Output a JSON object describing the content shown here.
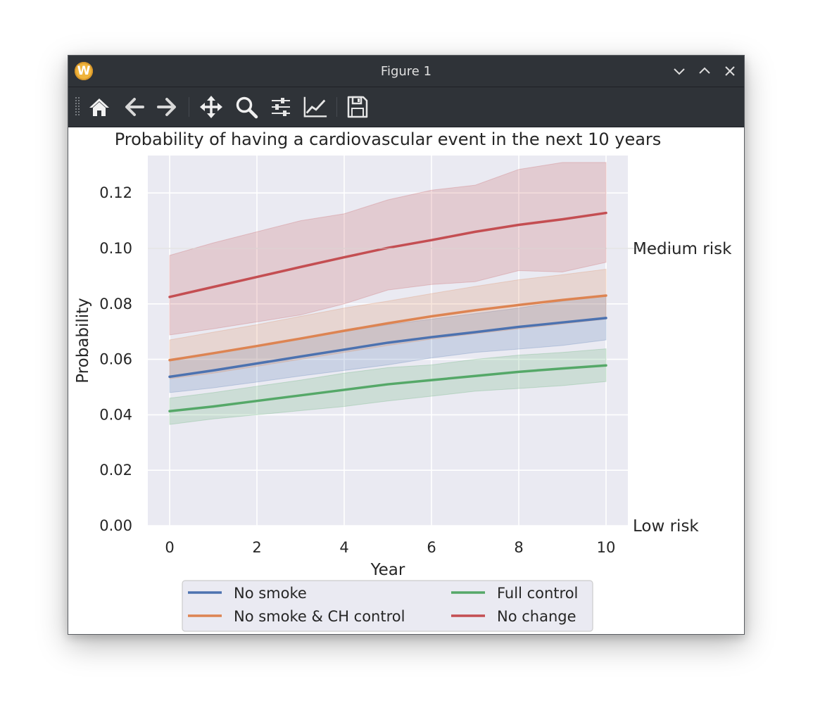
{
  "window": {
    "title": "Figure 1",
    "app_icon_letter": "W"
  },
  "toolbar": {
    "buttons": [
      {
        "name": "home-icon",
        "tooltip": "Reset original view"
      },
      {
        "name": "back-arrow-icon",
        "tooltip": "Back to previous view"
      },
      {
        "name": "forward-arrow-icon",
        "tooltip": "Forward to next view"
      },
      {
        "name": "pan-icon",
        "tooltip": "Pan axes"
      },
      {
        "name": "zoom-icon",
        "tooltip": "Zoom to rectangle"
      },
      {
        "name": "configure-subplots-icon",
        "tooltip": "Configure subplots"
      },
      {
        "name": "edit-axis-icon",
        "tooltip": "Edit axis, curve and image parameters"
      },
      {
        "name": "save-icon",
        "tooltip": "Save the figure"
      }
    ]
  },
  "colors": {
    "axes_bg": "#eaeaf2",
    "grid": "#ffffff",
    "No smoke": "#4c72b0",
    "No smoke & CH control": "#dd8452",
    "Full control": "#55a868",
    "No change": "#c44e52"
  },
  "chart_data": {
    "type": "line",
    "title": "Probability of having a cardiovascular event in the next 10 years",
    "xlabel": "Year",
    "ylabel": "Probability",
    "xlim": [
      -0.5,
      10.5
    ],
    "ylim": [
      0,
      0.1335
    ],
    "xticks": [
      "0",
      "2",
      "4",
      "6",
      "8",
      "10"
    ],
    "yticks": [
      "0.00",
      "0.02",
      "0.04",
      "0.06",
      "0.08",
      "0.10",
      "0.12"
    ],
    "grid": true,
    "legend": {
      "position": "bottom-center, below axes",
      "columns": 2
    },
    "x": [
      0,
      1,
      2,
      3,
      4,
      5,
      6,
      7,
      8,
      9,
      10
    ],
    "series": [
      {
        "name": "No smoke",
        "values": [
          0.0537,
          0.056,
          0.0585,
          0.061,
          0.0635,
          0.066,
          0.068,
          0.0698,
          0.0717,
          0.0733,
          0.0749
        ],
        "lower": [
          0.048,
          0.0497,
          0.0518,
          0.054,
          0.056,
          0.058,
          0.0605,
          0.0625,
          0.0637,
          0.065,
          0.067
        ],
        "upper": [
          0.06,
          0.0625,
          0.065,
          0.0675,
          0.07,
          0.0725,
          0.0745,
          0.0765,
          0.0785,
          0.081,
          0.083
        ]
      },
      {
        "name": "No smoke & CH control",
        "values": [
          0.0597,
          0.0622,
          0.0648,
          0.0675,
          0.0703,
          0.073,
          0.0755,
          0.0777,
          0.0796,
          0.0814,
          0.083
        ],
        "lower": [
          0.053,
          0.055,
          0.0575,
          0.06,
          0.0625,
          0.065,
          0.0673,
          0.0692,
          0.071,
          0.0727,
          0.0745
        ],
        "upper": [
          0.067,
          0.0698,
          0.0725,
          0.0755,
          0.0785,
          0.081,
          0.0837,
          0.0863,
          0.0887,
          0.0905,
          0.0925
        ]
      },
      {
        "name": "Full control",
        "values": [
          0.0413,
          0.043,
          0.045,
          0.047,
          0.049,
          0.051,
          0.0525,
          0.054,
          0.0555,
          0.0567,
          0.0578
        ],
        "lower": [
          0.0365,
          0.0385,
          0.04,
          0.0415,
          0.043,
          0.045,
          0.0467,
          0.0485,
          0.0495,
          0.0505,
          0.052
        ],
        "upper": [
          0.046,
          0.048,
          0.0503,
          0.0525,
          0.055,
          0.057,
          0.058,
          0.06,
          0.0615,
          0.0625,
          0.0638
        ]
      },
      {
        "name": "No change",
        "values": [
          0.0825,
          0.0861,
          0.0897,
          0.0933,
          0.0968,
          0.1002,
          0.103,
          0.106,
          0.1085,
          0.1105,
          0.1128
        ],
        "lower": [
          0.0688,
          0.071,
          0.0735,
          0.076,
          0.08,
          0.085,
          0.087,
          0.088,
          0.092,
          0.0915,
          0.095
        ],
        "upper": [
          0.0975,
          0.102,
          0.106,
          0.11,
          0.1125,
          0.1175,
          0.121,
          0.1228,
          0.1285,
          0.131,
          0.131
        ]
      }
    ],
    "reference_lines": [
      {
        "y": 0.1,
        "label": "Medium risk"
      },
      {
        "y": 0.0,
        "label": "Low risk"
      }
    ]
  }
}
